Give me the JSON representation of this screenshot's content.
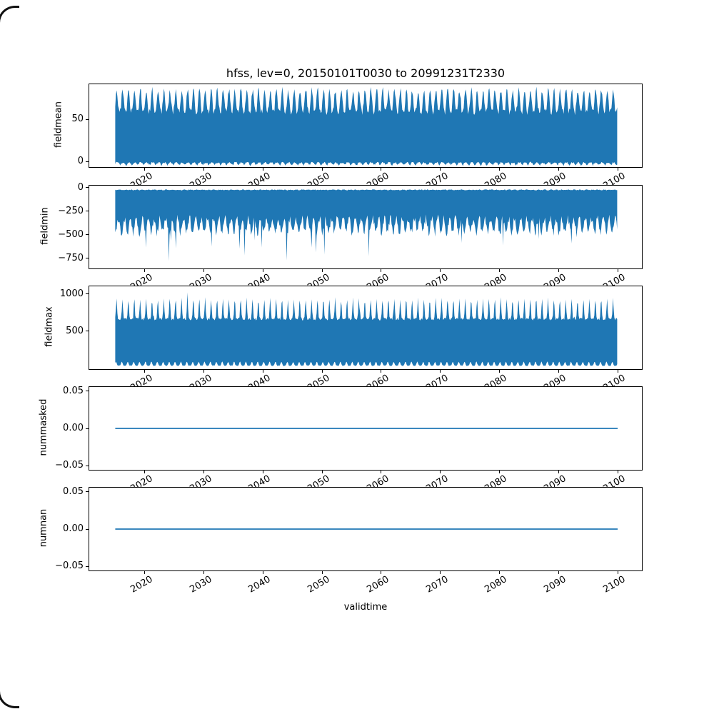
{
  "figure": {
    "title": "hfss, lev=0, 20150101T0030 to 20991231T2330",
    "background": "#ffffff",
    "series_color": "#1f77b4",
    "axis_color": "#000000"
  },
  "x_axis": {
    "label": "validtime",
    "ticks": [
      2020,
      2030,
      2040,
      2050,
      2060,
      2070,
      2080,
      2090,
      2100
    ],
    "xlim": [
      2010.6,
      2104.1
    ],
    "data_start_year": 2015,
    "data_end_year": 2100,
    "tick_rotation_deg": 30
  },
  "chart_data": [
    {
      "type": "area",
      "name": "fieldmean",
      "ylabel": "fieldmean",
      "yticks": [
        0,
        50
      ],
      "tick_decimals": 0,
      "ylim": [
        -7.5,
        92.5
      ],
      "x_years": [
        2015,
        2100
      ],
      "summary": {
        "description": "dense sub-daily series; plotted line fills a solid band",
        "band_top_range": [
          55,
          88
        ],
        "band_bottom_range": [
          -5,
          2
        ],
        "seasonal_period_years": 1
      },
      "gen": {
        "seed": 101,
        "top": {
          "base": 55,
          "amp": 27,
          "pow": 1.5,
          "phase": 0.0,
          "noise": 8
        },
        "bottom": {
          "base": -1,
          "amp": -3,
          "pow": 2.0,
          "phase": 2.6,
          "noise": -2
        }
      }
    },
    {
      "type": "area",
      "name": "fieldmin",
      "ylabel": "fieldmin",
      "yticks": [
        0,
        -250,
        -500,
        -750
      ],
      "tick_decimals": 0,
      "ylim": [
        -865,
        30
      ],
      "x_years": [
        2015,
        2100
      ],
      "summary": {
        "description": "band from ~-10 down to ragged envelope with sparse deep spikes",
        "band_top_range": [
          -20,
          -10
        ],
        "band_bottom_range": [
          -550,
          -280
        ],
        "spike_min": -830,
        "seasonal_period_years": 1
      },
      "gen": {
        "seed": 202,
        "top": {
          "base": -10,
          "amp": -4,
          "pow": 1.0,
          "phase": 0.5,
          "noise": -8
        },
        "bottom": {
          "base": -280,
          "amp": -160,
          "pow": 1.2,
          "phase": 1.1,
          "noise": -90,
          "spike_prob": 0.035,
          "spike_amp": -420,
          "clamp_min": -838
        }
      }
    },
    {
      "type": "area",
      "name": "fieldmax",
      "ylabel": "fieldmax",
      "yticks": [
        500,
        1000
      ],
      "tick_decimals": 0,
      "ylim": [
        -21,
        1111
      ],
      "x_years": [
        2015,
        2100
      ],
      "summary": {
        "description": "comb of narrow annual peaks over solid base band",
        "peak_range": [
          900,
          1055
        ],
        "valley_range": [
          620,
          690
        ],
        "band_bottom_range": [
          22,
          90
        ],
        "seasonal_period_years": 1
      },
      "gen": {
        "seed": 303,
        "top": {
          "base": 645,
          "amp": 285,
          "pow": 6.0,
          "phase": 0.2,
          "noise": 35,
          "spike_prob": 0.012,
          "spike_amp": 95
        },
        "bottom": {
          "base": 22,
          "amp": 55,
          "pow": 3.0,
          "phase": 0.9,
          "noise": 8
        }
      }
    },
    {
      "type": "line",
      "name": "nummasked",
      "ylabel": "nummasked",
      "yticks": [
        0.05,
        0.0,
        -0.05
      ],
      "tick_decimals": 2,
      "ylim": [
        -0.0566,
        0.0566
      ],
      "x_years": [
        2015,
        2100
      ],
      "value": 0,
      "points": {
        "x": [
          2015,
          2100
        ],
        "y": [
          0,
          0
        ]
      }
    },
    {
      "type": "line",
      "name": "numnan",
      "ylabel": "numnan",
      "yticks": [
        0.05,
        0.0,
        -0.05
      ],
      "tick_decimals": 2,
      "ylim": [
        -0.0566,
        0.0566
      ],
      "x_years": [
        2015,
        2100
      ],
      "value": 0,
      "points": {
        "x": [
          2015,
          2100
        ],
        "y": [
          0,
          0
        ]
      }
    }
  ]
}
